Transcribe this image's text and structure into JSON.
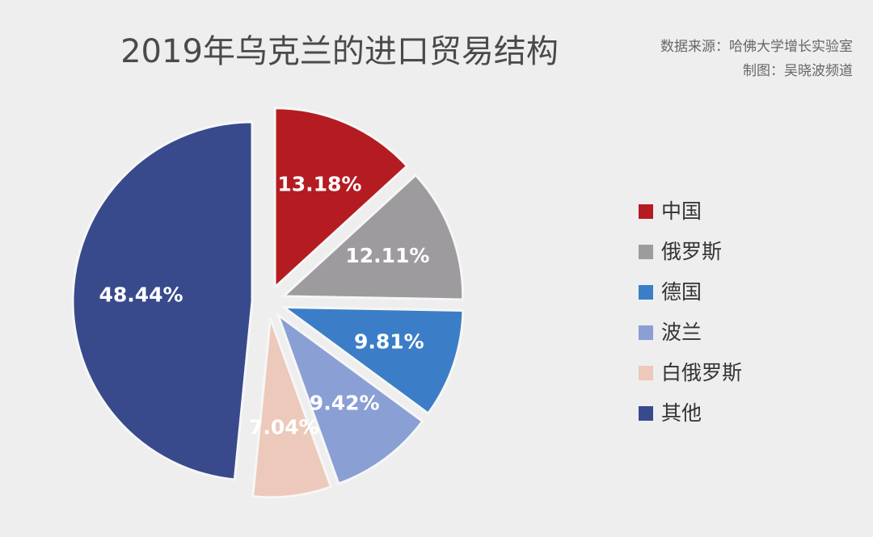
{
  "chart_data": {
    "type": "pie",
    "title": "2019年乌克兰的进口贸易结构",
    "source": "数据来源：哈佛大学增长实验室",
    "credit": "制图：吴晓波频道",
    "categories": [
      "中国",
      "俄罗斯",
      "德国",
      "波兰",
      "白俄罗斯",
      "其他"
    ],
    "values": [
      13.18,
      12.11,
      9.81,
      9.42,
      7.04,
      48.44
    ],
    "value_labels": [
      "13.18%",
      "12.11%",
      "9.81%",
      "9.42%",
      "7.04%",
      "48.44%"
    ],
    "colors": [
      "#b41c22",
      "#9e9b9f",
      "#3b7ec7",
      "#8a9fd4",
      "#ecc9ba",
      "#384a8c"
    ],
    "legend": "right"
  }
}
